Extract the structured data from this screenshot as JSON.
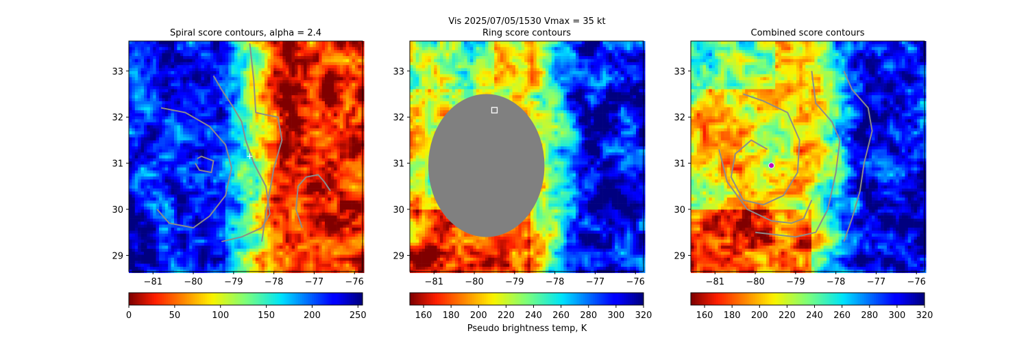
{
  "suptitle": "Vis  2025/07/05/1530    Vmax = 35 kt",
  "colorbar_label": "Pseudo brightness temp, K",
  "chart_data": [
    {
      "type": "heatmap",
      "title": "Spiral score contours, alpha =  2.4",
      "xlim": [
        -81.6,
        -75.8
      ],
      "ylim": [
        28.65,
        33.65
      ],
      "xticks": [
        -81,
        -80,
        -79,
        -78,
        -77,
        -76
      ],
      "xtick_labels": [
        "−81",
        "−80",
        "−79",
        "−78",
        "−77",
        "−76"
      ],
      "yticks": [
        29,
        30,
        31,
        32,
        33
      ],
      "ytick_labels": [
        "29",
        "30",
        "31",
        "32",
        "33"
      ],
      "colorbar": {
        "cmap": "jet_r",
        "range": [
          0,
          255
        ],
        "ticks": [
          0,
          50,
          100,
          150,
          200,
          250
        ],
        "tick_labels": [
          "0",
          "50",
          "100",
          "150",
          "200",
          "250"
        ]
      },
      "marker": {
        "lon": -78.6,
        "lat": 31.15,
        "symbol": "+"
      },
      "contours": [
        {
          "name": "inner",
          "points": [
            [
              -79.9,
              31.1
            ],
            [
              -79.8,
              31.15
            ],
            [
              -79.5,
              31.05
            ],
            [
              -79.55,
              30.8
            ],
            [
              -79.85,
              30.85
            ],
            [
              -79.95,
              31.0
            ]
          ]
        },
        {
          "name": "spiral",
          "points": [
            [
              -80.8,
              32.2
            ],
            [
              -80.2,
              32.1
            ],
            [
              -79.6,
              31.8
            ],
            [
              -79.2,
              31.4
            ],
            [
              -79.05,
              30.9
            ],
            [
              -79.2,
              30.3
            ],
            [
              -79.6,
              29.85
            ],
            [
              -80.0,
              29.6
            ],
            [
              -80.6,
              29.7
            ],
            [
              -80.9,
              30.0
            ]
          ]
        },
        {
          "name": "band",
          "points": [
            [
              -79.5,
              32.9
            ],
            [
              -79.3,
              32.6
            ],
            [
              -79.0,
              32.2
            ],
            [
              -78.8,
              31.9
            ],
            [
              -78.7,
              31.5
            ],
            [
              -78.5,
              31.0
            ],
            [
              -78.2,
              30.5
            ],
            [
              -78.1,
              29.9
            ],
            [
              -78.3,
              29.6
            ],
            [
              -78.8,
              29.4
            ],
            [
              -79.3,
              29.3
            ]
          ]
        },
        {
          "name": "outer",
          "points": [
            [
              -78.6,
              33.6
            ],
            [
              -78.5,
              32.8
            ],
            [
              -78.45,
              32.1
            ],
            [
              -78.2,
              32.05
            ],
            [
              -77.9,
              32.0
            ],
            [
              -77.8,
              31.5
            ],
            [
              -78.0,
              30.9
            ],
            [
              -78.1,
              30.4
            ],
            [
              -78.2,
              29.9
            ],
            [
              -78.3,
              29.3
            ]
          ]
        },
        {
          "name": "east",
          "points": [
            [
              -77.3,
              29.6
            ],
            [
              -77.45,
              30.0
            ],
            [
              -77.4,
              30.5
            ],
            [
              -77.2,
              30.7
            ],
            [
              -76.9,
              30.75
            ],
            [
              -76.75,
              30.6
            ],
            [
              -76.6,
              30.4
            ]
          ]
        }
      ]
    },
    {
      "type": "heatmap",
      "title": "Ring score contours",
      "xlim": [
        -81.6,
        -75.8
      ],
      "ylim": [
        28.65,
        33.65
      ],
      "xticks": [
        -81,
        -80,
        -79,
        -78,
        -77,
        -76
      ],
      "xtick_labels": [
        "−81",
        "−80",
        "−79",
        "−78",
        "−77",
        "−76"
      ],
      "yticks": [
        29,
        30,
        31,
        32,
        33
      ],
      "ytick_labels": [
        "29",
        "30",
        "31",
        "32",
        "33"
      ],
      "colorbar": {
        "cmap": "jet_r",
        "range": [
          150,
          320
        ],
        "ticks": [
          160,
          180,
          200,
          220,
          240,
          260,
          280,
          300,
          320
        ],
        "tick_labels": [
          "160",
          "180",
          "200",
          "220",
          "240",
          "260",
          "280",
          "300",
          "320"
        ]
      },
      "marker": {
        "lon": -79.5,
        "lat": 32.15,
        "symbol": "square"
      },
      "masked_region": {
        "center": [
          -79.7,
          30.95
        ],
        "radius_lon": 1.55,
        "radius_lat": 1.55,
        "color": "#808080"
      },
      "contours": []
    },
    {
      "type": "heatmap",
      "title": "Combined score contours",
      "xlim": [
        -81.6,
        -75.8
      ],
      "ylim": [
        28.65,
        33.65
      ],
      "xticks": [
        -81,
        -80,
        -79,
        -78,
        -77,
        -76
      ],
      "xtick_labels": [
        "−81",
        "−80",
        "−79",
        "−78",
        "−77",
        "−76"
      ],
      "yticks": [
        29,
        30,
        31,
        32,
        33
      ],
      "ytick_labels": [
        "29",
        "30",
        "31",
        "32",
        "33"
      ],
      "colorbar": {
        "cmap": "jet_r",
        "range": [
          150,
          320
        ],
        "ticks": [
          160,
          180,
          200,
          220,
          240,
          260,
          280,
          300,
          320
        ],
        "tick_labels": [
          "160",
          "180",
          "200",
          "220",
          "240",
          "260",
          "280",
          "300",
          "320"
        ]
      },
      "marker": {
        "lon": -79.6,
        "lat": 30.95,
        "symbol": "circle",
        "color": "#c000c0"
      },
      "contours": [
        {
          "name": "spiral",
          "points": [
            [
              -80.3,
              32.5
            ],
            [
              -79.8,
              32.35
            ],
            [
              -79.2,
              32.1
            ],
            [
              -78.9,
              31.5
            ],
            [
              -78.95,
              30.8
            ],
            [
              -79.3,
              30.3
            ],
            [
              -79.8,
              30.1
            ],
            [
              -80.3,
              30.2
            ],
            [
              -80.6,
              30.7
            ],
            [
              -80.5,
              31.2
            ],
            [
              -80.1,
              31.5
            ],
            [
              -79.7,
              31.3
            ]
          ]
        },
        {
          "name": "band",
          "points": [
            [
              -80.9,
              31.3
            ],
            [
              -80.7,
              30.6
            ],
            [
              -80.2,
              30.0
            ],
            [
              -79.6,
              29.75
            ],
            [
              -79.1,
              29.7
            ],
            [
              -78.8,
              29.8
            ],
            [
              -78.6,
              30.2
            ]
          ]
        },
        {
          "name": "outer-band",
          "points": [
            [
              -78.6,
              33.0
            ],
            [
              -78.5,
              32.3
            ],
            [
              -78.1,
              31.9
            ],
            [
              -77.9,
              31.5
            ],
            [
              -78.0,
              30.8
            ],
            [
              -78.2,
              30.0
            ],
            [
              -78.5,
              29.5
            ],
            [
              -79.0,
              29.4
            ],
            [
              -80.0,
              29.5
            ]
          ]
        },
        {
          "name": "east",
          "points": [
            [
              -77.8,
              33.0
            ],
            [
              -77.6,
              32.6
            ],
            [
              -77.2,
              32.2
            ],
            [
              -77.1,
              31.7
            ],
            [
              -77.3,
              31.0
            ],
            [
              -77.4,
              30.4
            ],
            [
              -77.6,
              29.8
            ],
            [
              -77.8,
              29.3
            ]
          ]
        }
      ]
    }
  ]
}
